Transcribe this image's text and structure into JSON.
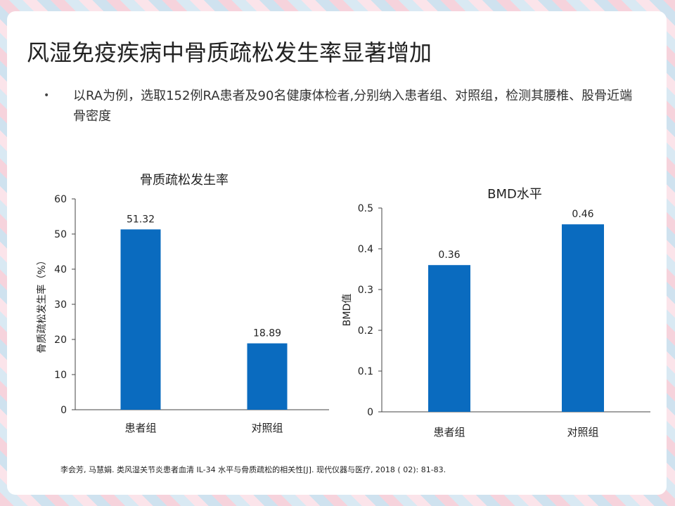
{
  "slide": {
    "title": "风湿免疫疾病中骨质疏松发生率显著增加",
    "bullet_marker": "•",
    "bullet": "以RA为例，选取152例RA患者及90名健康体检者,分别纳入患者组、对照组，检测其腰椎、股骨近端骨密度",
    "reference": "李会芳, 马慧娟. 类风湿关节炎患者血清 IL-34 水平与骨质疏松的相关性[J]. 现代仪器与医疗, 2018 ( 02): 81-83."
  },
  "colors": {
    "bar": "#0a6bbf",
    "axis": "#444444",
    "text": "#222222"
  },
  "chart_data": [
    {
      "type": "bar",
      "title": "骨质疏松发生率",
      "xlabel": "",
      "ylabel": "骨质疏松发生率（%）",
      "categories": [
        "患者组",
        "对照组"
      ],
      "values": [
        51.32,
        18.89
      ],
      "value_labels": [
        "51.32",
        "18.89"
      ],
      "ylim": [
        0,
        60
      ],
      "yticks": [
        "0",
        "10",
        "20",
        "30",
        "40",
        "50",
        "60"
      ],
      "grid": false,
      "legend": "none"
    },
    {
      "type": "bar",
      "title": "BMD水平",
      "xlabel": "",
      "ylabel": "BMD值",
      "categories": [
        "患者组",
        "对照组"
      ],
      "values": [
        0.36,
        0.46
      ],
      "value_labels": [
        "0.36",
        "0.46"
      ],
      "ylim": [
        0,
        0.5
      ],
      "yticks": [
        "0",
        "0.1",
        "0.2",
        "0.3",
        "0.4",
        "0.5"
      ],
      "grid": false,
      "legend": "none"
    }
  ]
}
